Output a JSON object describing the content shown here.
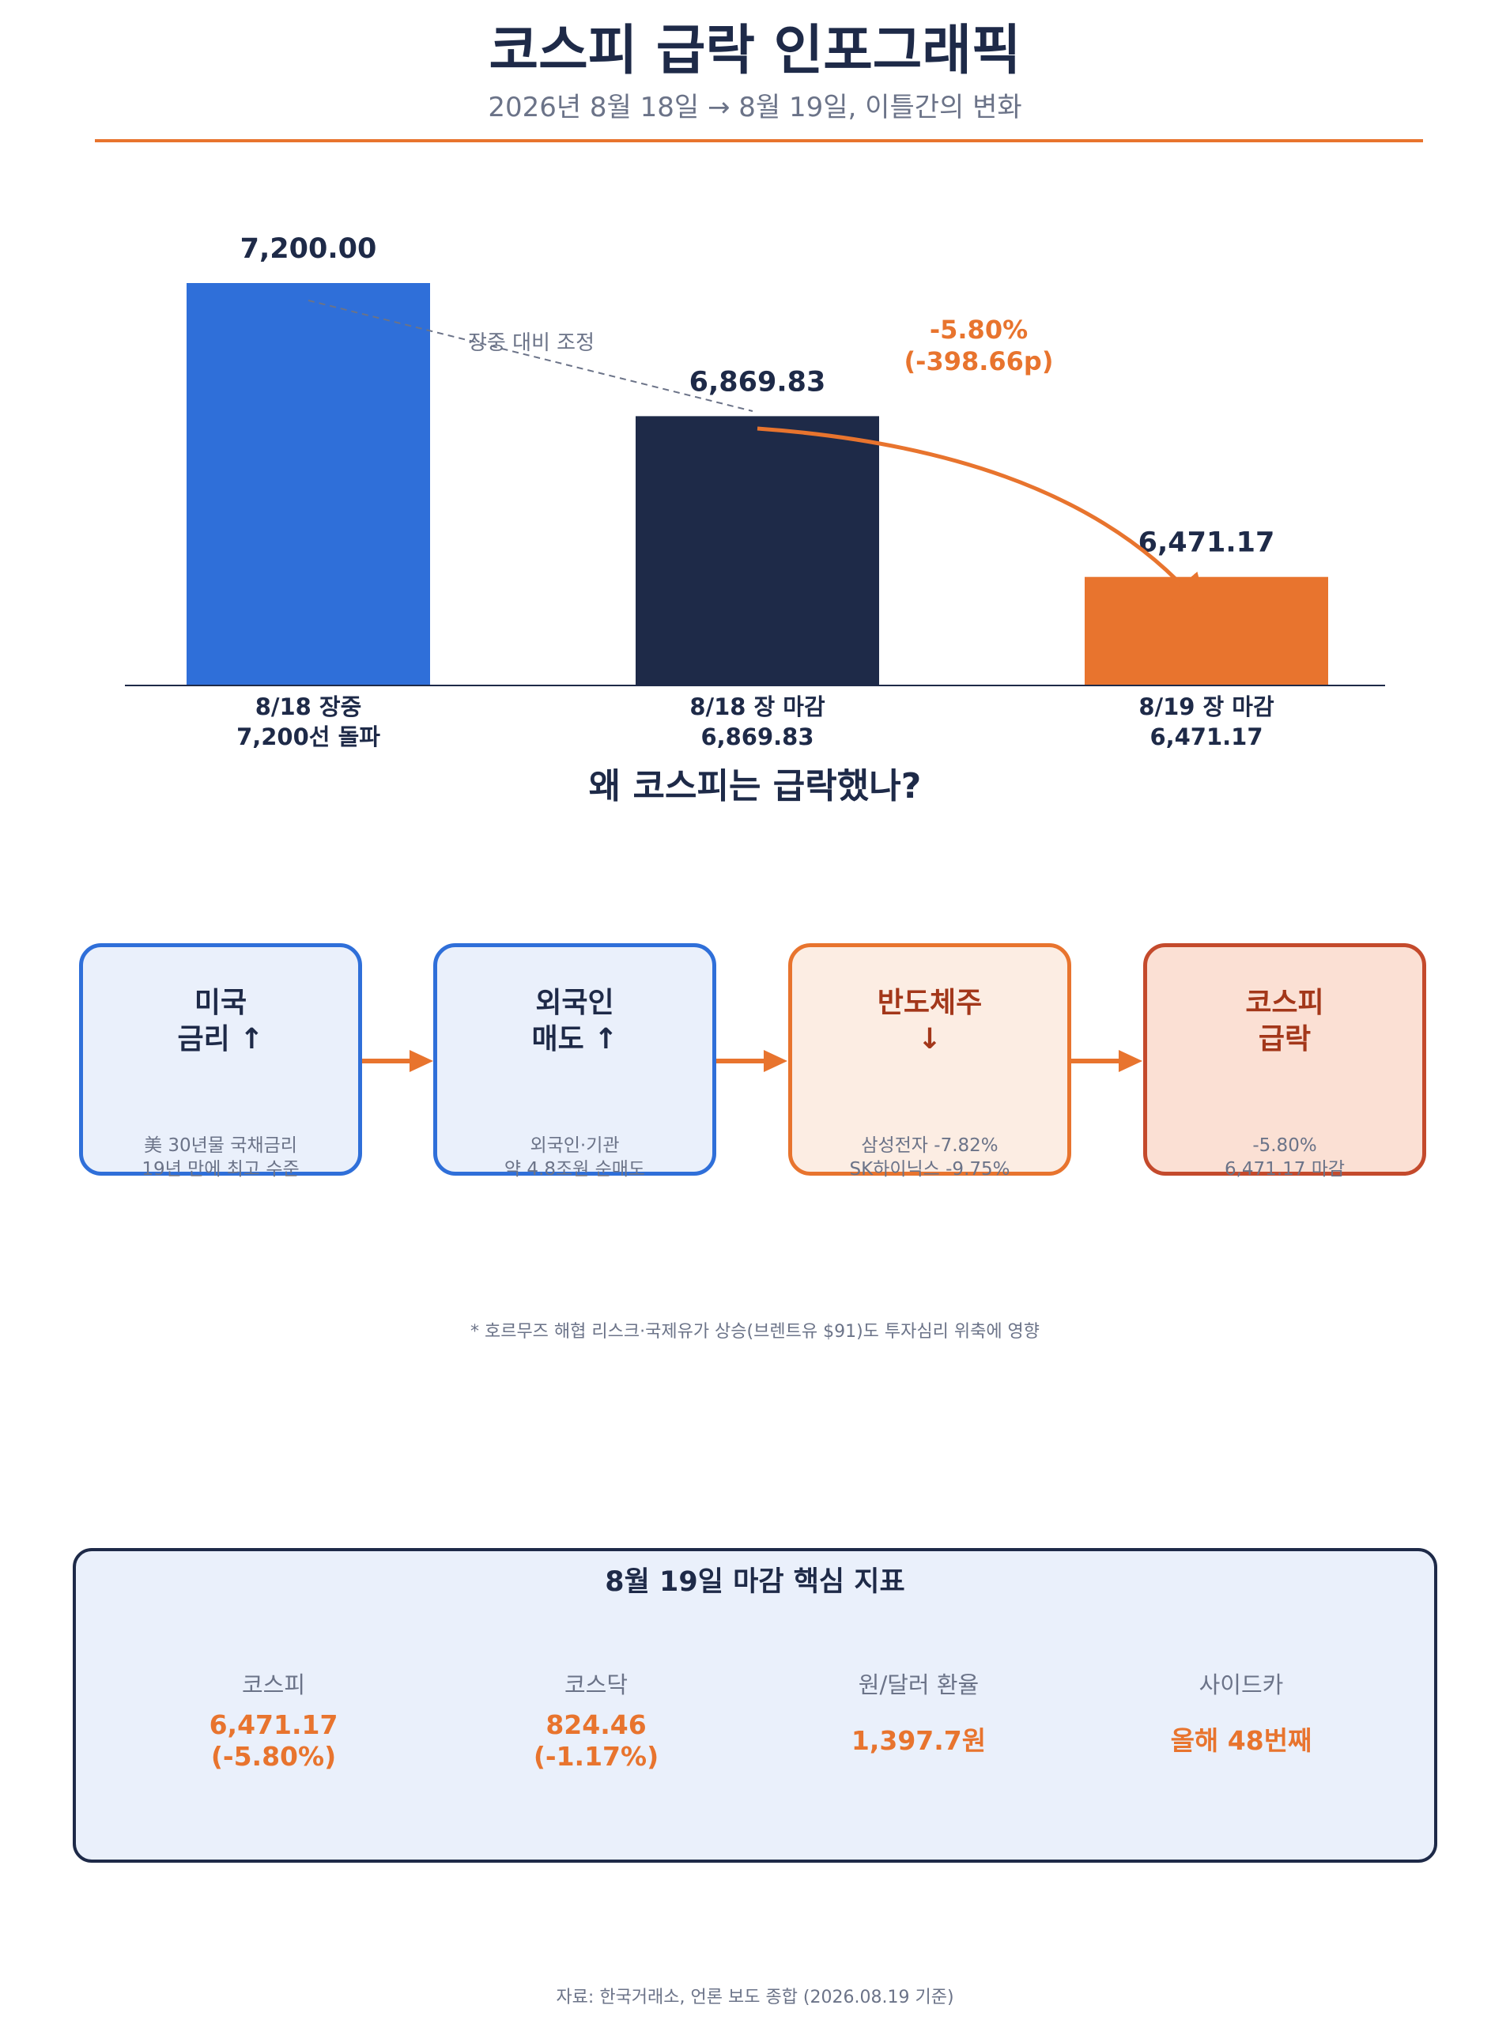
{
  "header": {
    "title": "코스피 급락 인포그래픽",
    "subtitle": "2026년 8월 18일 → 8월 19일, 이틀간의 변화"
  },
  "chart_data": {
    "type": "bar",
    "categories": [
      "8/18 장중\n7,200선 돌파",
      "8/18 장 마감\n6,869.83",
      "8/19 장 마감\n6,471.17"
    ],
    "values": [
      7200.0,
      6869.83,
      6471.17
    ],
    "value_labels": [
      "7,200.00",
      "6,869.83",
      "6,471.17"
    ],
    "colors": [
      "#2f6fd9",
      "#1e2a48",
      "#e8742e"
    ],
    "ylim": [
      6300,
      7200
    ],
    "annotations": {
      "dashed_note": "장중 대비 조정",
      "change_pct": "-5.80%",
      "change_pts": "(-398.66p)"
    },
    "grid": false,
    "legend": "none"
  },
  "causes": {
    "title": "왜 코스피는 급락했나?",
    "items": [
      {
        "title": "미국\n금리 ↑",
        "note": "美 30년물 국채금리\n19년 만에 최고 수준"
      },
      {
        "title": "외국인\n매도 ↑",
        "note": "외국인·기관\n약 4.8조원 순매도"
      },
      {
        "title": "반도체주\n↓",
        "note": "삼성전자 -7.82%\nSK하이닉스 -9.75%"
      },
      {
        "title": "코스피\n급락",
        "note": "-5.80%\n6,471.17 마감"
      }
    ],
    "footnote": "* 호르무즈 해협 리스크·국제유가 상승(브렌트유 $91)도 투자심리 위축에 영향"
  },
  "kpi": {
    "title": "8월 19일 마감 핵심 지표",
    "items": [
      {
        "label": "코스피",
        "value": "6,471.17\n(-5.80%)"
      },
      {
        "label": "코스닥",
        "value": "824.46\n(-1.17%)"
      },
      {
        "label": "원/달러 환율",
        "value": "1,397.7원"
      },
      {
        "label": "사이드카",
        "value": "올해 48번째"
      }
    ]
  },
  "accent_color": "#e8742e",
  "source": "자료: 한국거래소, 언론 보도 종합 (2026.08.19 기준)"
}
